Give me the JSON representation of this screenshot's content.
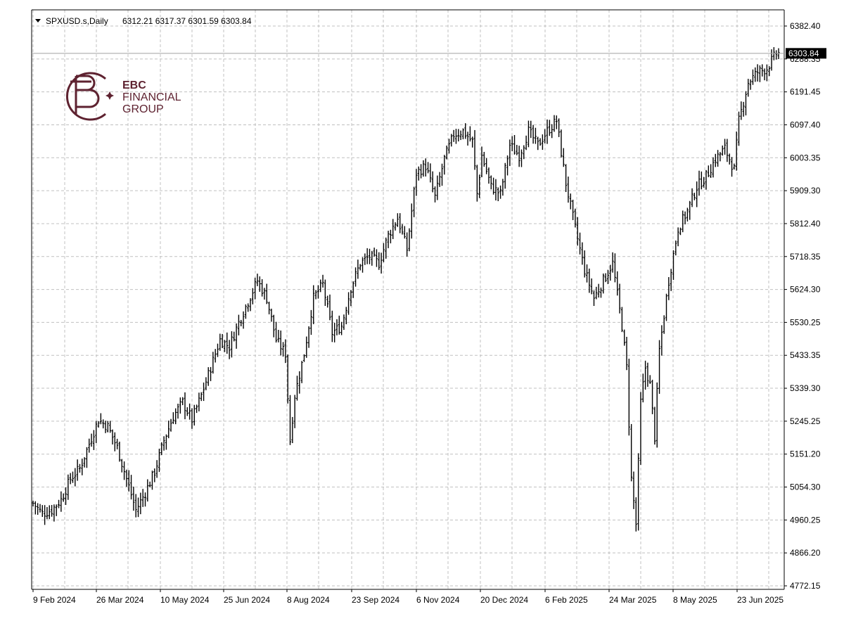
{
  "header": {
    "symbol": "SPXUSD.s,Daily",
    "ohlc": "6312.21 6317.37 6301.59 6303.84"
  },
  "logo": {
    "line1": "EBC",
    "line2": "FINANCIAL",
    "line3": "GROUP",
    "color": "#5e2230"
  },
  "colors": {
    "bars": "#000000",
    "grid": "#c0c0c0",
    "price_tag_bg": "#000000",
    "price_tag_text": "#ffffff",
    "background": "#ffffff"
  },
  "chart_data": {
    "type": "ohlc",
    "grid": true,
    "ylim": [
      4772.15,
      6382.4
    ],
    "y_ticks": [
      "6382.40",
      "6288.35",
      "6191.45",
      "6097.40",
      "6003.35",
      "5909.30",
      "5812.40",
      "5718.35",
      "5624.30",
      "5530.25",
      "5433.35",
      "5339.30",
      "5245.25",
      "5151.20",
      "5054.30",
      "4960.25",
      "4866.20",
      "4772.15"
    ],
    "x_ticks": [
      "9 Feb 2024",
      "26 Mar 2024",
      "10 May 2024",
      "25 Jun 2024",
      "8 Aug 2024",
      "23 Sep 2024",
      "6 Nov 2024",
      "20 Dec 2024",
      "6 Feb 2025",
      "24 Mar 2025",
      "8 May 2025",
      "23 Jun 2025"
    ],
    "last_price": "6303.84",
    "close_path": [
      [
        0,
        5010
      ],
      [
        4,
        4980
      ],
      [
        8,
        4990
      ],
      [
        12,
        5020
      ],
      [
        16,
        5080
      ],
      [
        20,
        5110
      ],
      [
        24,
        5180
      ],
      [
        28,
        5250
      ],
      [
        32,
        5230
      ],
      [
        36,
        5170
      ],
      [
        40,
        5080
      ],
      [
        44,
        4990
      ],
      [
        48,
        5040
      ],
      [
        52,
        5100
      ],
      [
        56,
        5190
      ],
      [
        60,
        5260
      ],
      [
        64,
        5300
      ],
      [
        68,
        5250
      ],
      [
        72,
        5320
      ],
      [
        76,
        5400
      ],
      [
        80,
        5480
      ],
      [
        84,
        5460
      ],
      [
        88,
        5530
      ],
      [
        92,
        5590
      ],
      [
        96,
        5650
      ],
      [
        100,
        5600
      ],
      [
        104,
        5480
      ],
      [
        108,
        5440
      ],
      [
        110,
        5190
      ],
      [
        112,
        5320
      ],
      [
        116,
        5440
      ],
      [
        120,
        5600
      ],
      [
        124,
        5640
      ],
      [
        128,
        5500
      ],
      [
        132,
        5520
      ],
      [
        136,
        5630
      ],
      [
        140,
        5700
      ],
      [
        144,
        5720
      ],
      [
        148,
        5700
      ],
      [
        152,
        5780
      ],
      [
        156,
        5830
      ],
      [
        160,
        5740
      ],
      [
        164,
        5960
      ],
      [
        168,
        5980
      ],
      [
        172,
        5890
      ],
      [
        176,
        6000
      ],
      [
        180,
        6070
      ],
      [
        184,
        6080
      ],
      [
        188,
        6050
      ],
      [
        190,
        5900
      ],
      [
        192,
        6010
      ],
      [
        196,
        5920
      ],
      [
        200,
        5900
      ],
      [
        204,
        6040
      ],
      [
        208,
        6010
      ],
      [
        212,
        6080
      ],
      [
        216,
        6040
      ],
      [
        220,
        6080
      ],
      [
        224,
        6110
      ],
      [
        228,
        5930
      ],
      [
        232,
        5800
      ],
      [
        236,
        5680
      ],
      [
        240,
        5600
      ],
      [
        244,
        5650
      ],
      [
        248,
        5700
      ],
      [
        252,
        5520
      ],
      [
        254,
        5400
      ],
      [
        256,
        5080
      ],
      [
        258,
        4950
      ],
      [
        260,
        5300
      ],
      [
        262,
        5400
      ],
      [
        264,
        5350
      ],
      [
        266,
        5200
      ],
      [
        268,
        5450
      ],
      [
        272,
        5650
      ],
      [
        276,
        5800
      ],
      [
        280,
        5850
      ],
      [
        284,
        5920
      ],
      [
        288,
        5950
      ],
      [
        292,
        6000
      ],
      [
        296,
        6030
      ],
      [
        300,
        5970
      ],
      [
        302,
        6110
      ],
      [
        306,
        6220
      ],
      [
        310,
        6250
      ],
      [
        314,
        6260
      ],
      [
        318,
        6303.84
      ]
    ]
  }
}
